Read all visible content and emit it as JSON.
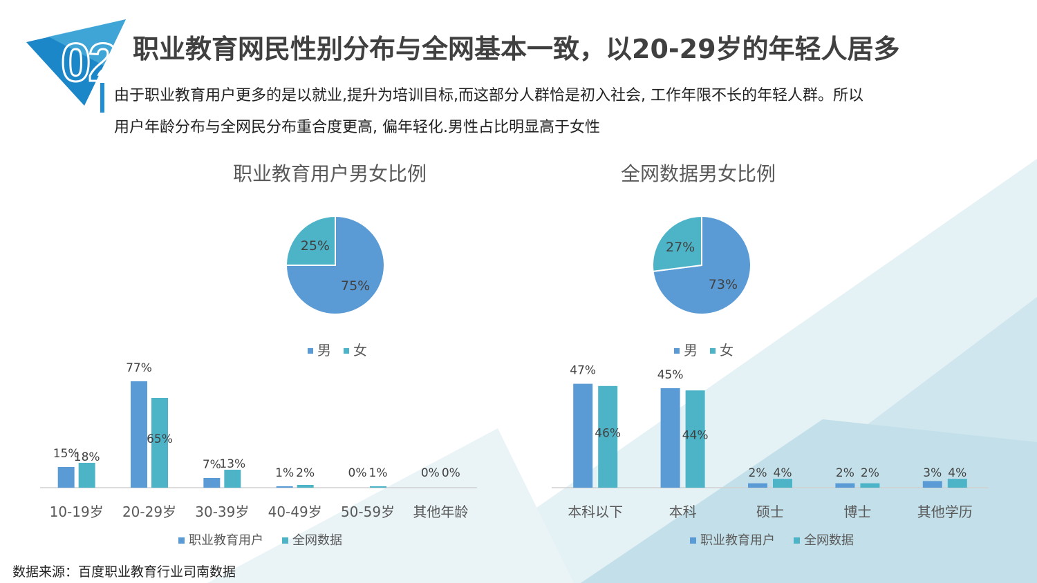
{
  "header": {
    "badge_number": "02",
    "title": "职业教育网民性别分布与全网基本一致，以20-29岁的年轻人居多",
    "description_line1": "由于职业教育用户更多的是以就业,提升为培训目标,而这部分人群恰是初入社会, 工作年限不长的年轻人群。所以",
    "description_line2": "用户年龄分布与全网民分布重合度更高, 偏年轻化.男性占比明显高于女性"
  },
  "colors": {
    "primary": "#5b9bd5",
    "secondary": "#4db4c8",
    "accent": "#1f8fd4"
  },
  "chart_data": [
    {
      "type": "pie",
      "title": "职业教育用户男女比例",
      "slices": [
        {
          "label": "男",
          "value": 75
        },
        {
          "label": "女",
          "value": 25
        }
      ],
      "data_labels": [
        "75%",
        "25%"
      ],
      "legend": [
        "男",
        "女"
      ],
      "legend_position": "bottom"
    },
    {
      "type": "pie",
      "title": "全网数据男女比例",
      "slices": [
        {
          "label": "男",
          "value": 73
        },
        {
          "label": "女",
          "value": 27
        }
      ],
      "data_labels": [
        "73%",
        "27%"
      ],
      "legend": [
        "男",
        "女"
      ],
      "legend_position": "bottom"
    },
    {
      "type": "bar",
      "categories": [
        "10-19岁",
        "20-29岁",
        "30-39岁",
        "40-49岁",
        "50-59岁",
        "其他年龄"
      ],
      "series": [
        {
          "name": "职业教育用户",
          "values": [
            15,
            77,
            7,
            1,
            0,
            0
          ],
          "labels": [
            "15%",
            "77%",
            "7%",
            "1%",
            "0%",
            "0%"
          ]
        },
        {
          "name": "全网数据",
          "values": [
            18,
            65,
            13,
            2,
            1,
            0
          ],
          "labels": [
            "18%",
            "65%",
            "13%",
            "2%",
            "1%",
            "0%"
          ]
        }
      ],
      "ylim": [
        0,
        80
      ],
      "legend_position": "bottom"
    },
    {
      "type": "bar",
      "categories": [
        "本科以下",
        "本科",
        "硕士",
        "博士",
        "其他学历"
      ],
      "series": [
        {
          "name": "职业教育用户",
          "values": [
            47,
            45,
            2,
            2,
            3
          ],
          "labels": [
            "47%",
            "45%",
            "2%",
            "2%",
            "3%"
          ]
        },
        {
          "name": "全网数据",
          "values": [
            46,
            44,
            4,
            2,
            4
          ],
          "labels": [
            "46%",
            "44%",
            "4%",
            "2%",
            "4%"
          ]
        }
      ],
      "ylim": [
        0,
        50
      ],
      "legend_position": "bottom"
    }
  ],
  "footer": {
    "source": "数据来源：百度职业教育行业司南数据"
  }
}
